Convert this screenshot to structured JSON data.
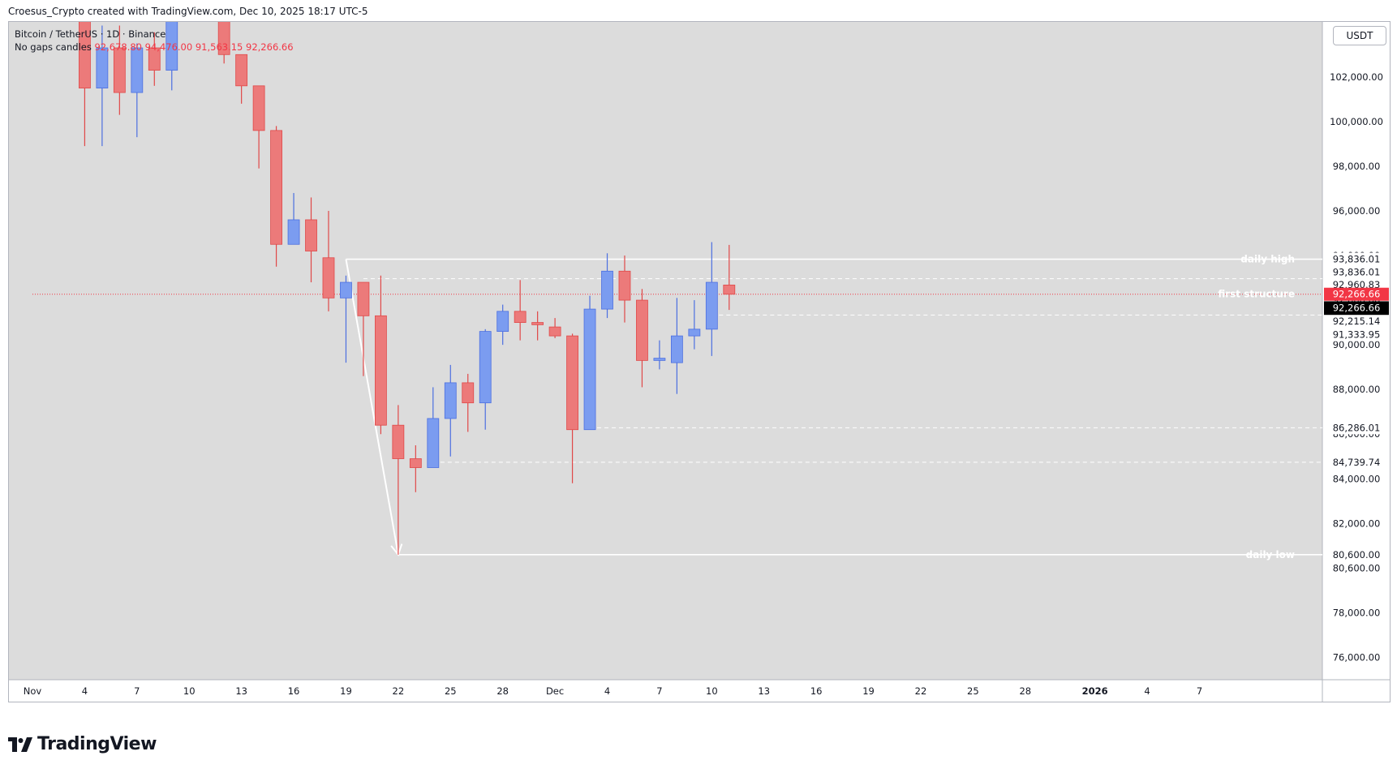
{
  "header": {
    "credit": "Croesus_Crypto created with TradingView.com, Dec 10, 2025 18:17 UTC-5"
  },
  "legend": {
    "symbol_line": "Bitcoin / TetherUS · 1D · Binance",
    "style_label": "No gaps candles",
    "ohlc": "92,678.80  94,476.00  91,563.15  92,266.66"
  },
  "currency": "USDT",
  "branding": {
    "logo_text": "TradingView"
  },
  "colors": {
    "background": "#dcdcdc",
    "up": "#7b9cf0",
    "down": "#ec7a7a",
    "wick_up": "#4c6fe0",
    "wick_down": "#e04848",
    "level_line": "#ffffff",
    "price_marker": "#f23645"
  },
  "chart_data": {
    "type": "candlestick",
    "title": "Bitcoin / TetherUS · 1D · Binance",
    "ylim": [
      75000,
      104500
    ],
    "y_ticks": [
      76000,
      78000,
      80000,
      82000,
      84000,
      86000,
      88000,
      90000,
      92000,
      94000,
      96000,
      98000,
      100000,
      102000
    ],
    "y_tick_labels": [
      "76,000.00",
      "78,000.00",
      "80,000.00",
      "82,000.00",
      "84,000.00",
      "86,000.00",
      "88,000.00",
      "90,000.00",
      "92,000.00",
      "94,000.00",
      "96,000.00",
      "98,000.00",
      "100,000.00",
      "102,000.00"
    ],
    "x_labels": [
      {
        "label": "Nov",
        "day": 0
      },
      {
        "label": "4",
        "day": 3
      },
      {
        "label": "7",
        "day": 6
      },
      {
        "label": "10",
        "day": 9
      },
      {
        "label": "13",
        "day": 12
      },
      {
        "label": "16",
        "day": 15
      },
      {
        "label": "19",
        "day": 18
      },
      {
        "label": "22",
        "day": 21
      },
      {
        "label": "25",
        "day": 24
      },
      {
        "label": "28",
        "day": 27
      },
      {
        "label": "Dec",
        "day": 30
      },
      {
        "label": "4",
        "day": 33
      },
      {
        "label": "7",
        "day": 36
      },
      {
        "label": "10",
        "day": 39
      },
      {
        "label": "13",
        "day": 42
      },
      {
        "label": "16",
        "day": 45
      },
      {
        "label": "19",
        "day": 48
      },
      {
        "label": "22",
        "day": 51
      },
      {
        "label": "25",
        "day": 54
      },
      {
        "label": "28",
        "day": 57
      },
      {
        "label": "2026",
        "day": 61,
        "bold": true
      },
      {
        "label": "4",
        "day": 64
      },
      {
        "label": "7",
        "day": 67
      }
    ],
    "candles": [
      {
        "date": "Nov 3",
        "day": 3,
        "open": 107500,
        "high": 107800,
        "low": 98900,
        "close": 101500
      },
      {
        "date": "Nov 4",
        "day": 4,
        "open": 101500,
        "high": 104300,
        "low": 98900,
        "close": 103300
      },
      {
        "date": "Nov 5",
        "day": 5,
        "open": 103300,
        "high": 104300,
        "low": 100300,
        "close": 101300
      },
      {
        "date": "Nov 6",
        "day": 6,
        "open": 101300,
        "high": 103500,
        "low": 99300,
        "close": 103300
      },
      {
        "date": "Nov 7",
        "day": 7,
        "open": 103300,
        "high": 104000,
        "low": 101600,
        "close": 102300
      },
      {
        "date": "Nov 8",
        "day": 8,
        "open": 102300,
        "high": 106500,
        "low": 101400,
        "close": 106000
      },
      {
        "date": "Nov 11",
        "day": 11,
        "open": 105500,
        "high": 106000,
        "low": 102600,
        "close": 103000
      },
      {
        "date": "Nov 12",
        "day": 12,
        "open": 103000,
        "high": 103000,
        "low": 100800,
        "close": 101600
      },
      {
        "date": "Nov 13",
        "day": 13,
        "open": 101600,
        "high": 101600,
        "low": 97900,
        "close": 99600
      },
      {
        "date": "Nov 14",
        "day": 14,
        "open": 99600,
        "high": 99800,
        "low": 93500,
        "close": 94500
      },
      {
        "date": "Nov 15",
        "day": 15,
        "open": 94500,
        "high": 96800,
        "low": 94500,
        "close": 95600
      },
      {
        "date": "Nov 16",
        "day": 16,
        "open": 95600,
        "high": 96600,
        "low": 92800,
        "close": 94200
      },
      {
        "date": "Nov 17",
        "day": 17,
        "open": 93900,
        "high": 96000,
        "low": 91500,
        "close": 92100
      },
      {
        "date": "Nov 18",
        "day": 18,
        "open": 92100,
        "high": 93100,
        "low": 89200,
        "close": 92800
      },
      {
        "date": "Nov 19",
        "day": 19,
        "open": 92800,
        "high": 92800,
        "low": 88600,
        "close": 91300
      },
      {
        "date": "Nov 20",
        "day": 20,
        "open": 91300,
        "high": 93100,
        "low": 86000,
        "close": 86400
      },
      {
        "date": "Nov 21",
        "day": 21,
        "open": 86400,
        "high": 87300,
        "low": 80600,
        "close": 84900
      },
      {
        "date": "Nov 22",
        "day": 22,
        "open": 84900,
        "high": 85500,
        "low": 83400,
        "close": 84500
      },
      {
        "date": "Nov 23",
        "day": 23,
        "open": 84500,
        "high": 88100,
        "low": 84500,
        "close": 86700
      },
      {
        "date": "Nov 24",
        "day": 24,
        "open": 86700,
        "high": 89100,
        "low": 85000,
        "close": 88300
      },
      {
        "date": "Nov 25",
        "day": 25,
        "open": 88300,
        "high": 88700,
        "low": 86100,
        "close": 87400
      },
      {
        "date": "Nov 26",
        "day": 26,
        "open": 87400,
        "high": 90700,
        "low": 86200,
        "close": 90600
      },
      {
        "date": "Nov 27",
        "day": 27,
        "open": 90600,
        "high": 91800,
        "low": 90000,
        "close": 91500
      },
      {
        "date": "Nov 28",
        "day": 28,
        "open": 91500,
        "high": 92900,
        "low": 90200,
        "close": 91000
      },
      {
        "date": "Nov 29",
        "day": 29,
        "open": 91000,
        "high": 91500,
        "low": 90200,
        "close": 90900
      },
      {
        "date": "Nov 30",
        "day": 30,
        "open": 90800,
        "high": 91200,
        "low": 90300,
        "close": 90400
      },
      {
        "date": "Dec 1",
        "day": 31,
        "open": 90400,
        "high": 90500,
        "low": 83800,
        "close": 86200
      },
      {
        "date": "Dec 2",
        "day": 32,
        "open": 86200,
        "high": 92200,
        "low": 86200,
        "close": 91600
      },
      {
        "date": "Dec 3",
        "day": 33,
        "open": 91600,
        "high": 94100,
        "low": 91200,
        "close": 93300
      },
      {
        "date": "Dec 4",
        "day": 34,
        "open": 93300,
        "high": 94000,
        "low": 91000,
        "close": 92000
      },
      {
        "date": "Dec 5",
        "day": 35,
        "open": 92000,
        "high": 92500,
        "low": 88100,
        "close": 89300
      },
      {
        "date": "Dec 6",
        "day": 36,
        "open": 89300,
        "high": 90200,
        "low": 88900,
        "close": 89400
      },
      {
        "date": "Dec 7",
        "day": 37,
        "open": 89200,
        "high": 92100,
        "low": 87800,
        "close": 90400
      },
      {
        "date": "Dec 8",
        "day": 38,
        "open": 90400,
        "high": 92000,
        "low": 89800,
        "close": 90700
      },
      {
        "date": "Dec 9",
        "day": 39,
        "open": 90700,
        "high": 94600,
        "low": 89500,
        "close": 92800
      },
      {
        "date": "Dec 10",
        "day": 40,
        "open": 92678.8,
        "high": 94476,
        "low": 91563.15,
        "close": 92266.66
      }
    ],
    "levels": [
      {
        "name": "daily high",
        "value": 93836.01,
        "style": "solid",
        "start_day": 18,
        "label": "daily high"
      },
      {
        "name": "first structure",
        "value": 92266.66,
        "style": "dotted",
        "start_day": 0,
        "label": "first structure"
      },
      {
        "name": "structure top",
        "value": 92960.83,
        "style": "dashed",
        "start_day": 19
      },
      {
        "name": "structure bottom",
        "value": 91333.95,
        "style": "dashed",
        "start_day": 39
      },
      {
        "name": "support 1",
        "value": 86286.01,
        "style": "dashed",
        "start_day": 32
      },
      {
        "name": "support 2",
        "value": 84739.74,
        "style": "dashed",
        "start_day": 23
      },
      {
        "name": "daily low",
        "value": 80600,
        "style": "solid",
        "start_day": 21,
        "label": "daily low"
      }
    ],
    "arrow": {
      "from_day": 18,
      "from_value": 93836,
      "to_day": 21,
      "to_value": 80600
    },
    "axis_labels": [
      {
        "value": 93836.01,
        "text": "93,836.01",
        "pos": 93836.01
      },
      {
        "value": 93836.01,
        "text": "93,836.01",
        "pos": 93250
      },
      {
        "value": 92960.83,
        "text": "92,960.83",
        "pos": 92700
      },
      {
        "value": 92266.66,
        "text": "92,266.66",
        "pos": 92266.66,
        "kind": "price"
      },
      {
        "value": 92266.66,
        "text": "92,266.66",
        "pos": 91660,
        "kind": "black",
        "extra": "42:42"
      },
      {
        "value": 92215.14,
        "text": "92,215.14",
        "pos": 91050
      },
      {
        "value": 91333.95,
        "text": "91,333.95",
        "pos": 90450
      },
      {
        "value": 86286.01,
        "text": "86,286.01",
        "pos": 86286.01
      },
      {
        "value": 84739.74,
        "text": "84,739.74",
        "pos": 84739.74
      },
      {
        "value": 80600,
        "text": "80,600.00",
        "pos": 80600
      },
      {
        "value": 80600,
        "text": "80,600.00",
        "pos": 80000
      }
    ]
  }
}
